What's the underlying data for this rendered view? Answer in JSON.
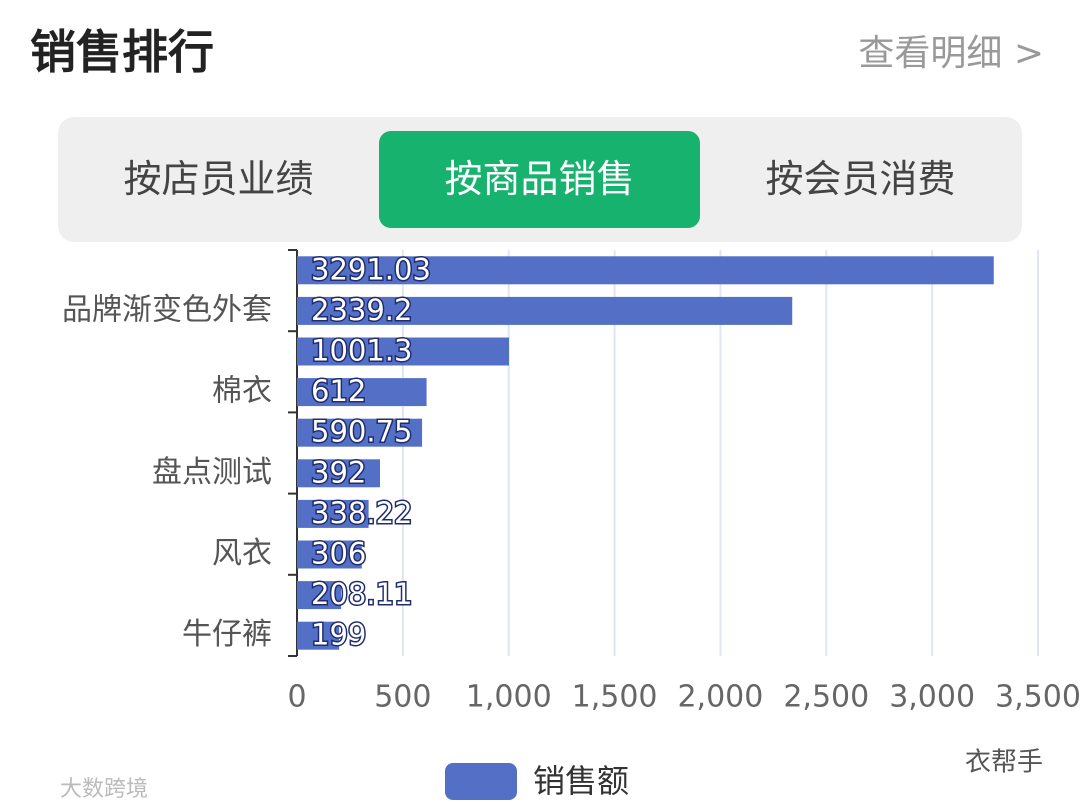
{
  "header": {
    "title": "销售排行",
    "link": "查看明细 >"
  },
  "tabs": [
    "按店员业绩",
    "按商品销售",
    "按会员消费"
  ],
  "watermarks": [
    "大数跨境",
    "衣帮手"
  ],
  "chart_data": {
    "type": "hbar",
    "categories": [
      null,
      "品牌渐变色外套",
      null,
      "棉衣",
      null,
      "盘点测试",
      null,
      "风衣",
      null,
      "牛仔裤"
    ],
    "series": [
      {
        "name": "销售额",
        "color": "#5470c6",
        "values": [
          3291.03,
          2339.2,
          1001.3,
          612,
          590.75,
          392,
          338.22,
          306,
          208.11,
          199
        ]
      }
    ],
    "xlim": [
      0,
      3500
    ],
    "xticks": [
      0,
      500,
      {
        "value": 1000,
        "label": "1,000"
      },
      {
        "value": 1500,
        "label": "1,500"
      },
      {
        "value": 2000,
        "label": "2,000"
      },
      {
        "value": 2500,
        "label": "2,500"
      },
      {
        "value": 3000,
        "label": "3,000"
      },
      {
        "value": 3500,
        "label": "3,500"
      }
    ],
    "grid": true
  }
}
